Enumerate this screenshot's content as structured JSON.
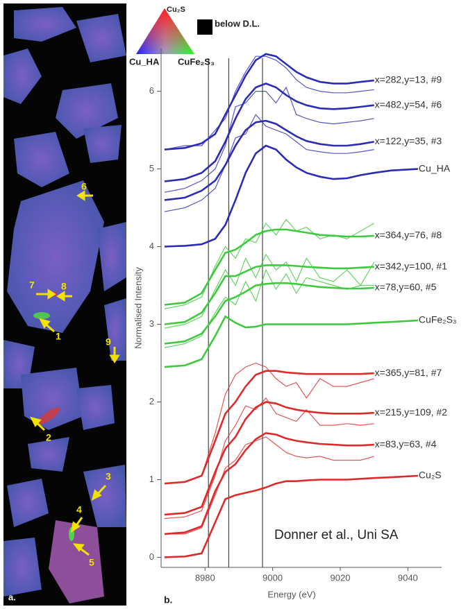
{
  "chart_data": {
    "type": "line",
    "x_label": "Energy (eV)",
    "y_label": "Normalised Intensity",
    "panel_label": "b.",
    "annotation": "Donner et al., Uni SA",
    "color_key": {
      "top": "Cu₂S",
      "left": "Cu_HA",
      "right": "CuFe₂S₃",
      "below": "below D.L."
    },
    "xlim": [
      8967,
      9050
    ],
    "xticks": [
      8980,
      9000,
      9020,
      9040
    ],
    "ylim": [
      -0.13,
      6.55
    ],
    "yticks": [
      0,
      1,
      2,
      3,
      4,
      5,
      6
    ],
    "vlines": [
      8981,
      8987,
      8997
    ],
    "x": [
      8968,
      8974,
      8979,
      8983,
      8986,
      8989,
      8992,
      8995,
      8998,
      9001,
      9004,
      9007,
      9010,
      9014,
      9018,
      9022,
      9026,
      9030,
      9035,
      9043
    ],
    "series": [
      {
        "name": "x=282,y=13, #9",
        "color": "#2b2bb5",
        "values": [
          5.25,
          5.27,
          5.33,
          5.45,
          5.7,
          5.95,
          6.2,
          6.4,
          6.48,
          6.45,
          6.35,
          6.25,
          6.18,
          6.12,
          6.1,
          6.1,
          6.12,
          6.14,
          null,
          null
        ],
        "measured": [
          5.25,
          5.3,
          5.3,
          5.5,
          5.65,
          6.0,
          6.25,
          6.45,
          6.45,
          6.4,
          6.3,
          6.15,
          6.05,
          6.0,
          5.98,
          5.98,
          6.0,
          6.02,
          null,
          null
        ]
      },
      {
        "name": "x=482,y=54, #6",
        "color": "#2b2bb5",
        "values": [
          4.84,
          4.87,
          4.95,
          5.1,
          5.35,
          5.65,
          5.9,
          6.05,
          6.1,
          6.05,
          5.95,
          5.87,
          5.82,
          5.78,
          5.77,
          5.78,
          5.8,
          5.82,
          null,
          null
        ],
        "measured": [
          4.7,
          4.75,
          4.85,
          5.0,
          5.3,
          5.8,
          5.85,
          6.0,
          6.0,
          5.85,
          6.05,
          5.7,
          5.65,
          5.6,
          5.58,
          5.6,
          5.62,
          5.65,
          null,
          null
        ]
      },
      {
        "name": "x=122,y=35, #3",
        "color": "#2b2bb5",
        "values": [
          4.6,
          4.63,
          4.72,
          4.85,
          5.05,
          5.3,
          5.5,
          5.6,
          5.62,
          5.58,
          5.5,
          5.42,
          5.36,
          5.32,
          5.3,
          5.3,
          5.32,
          5.35,
          null,
          null
        ],
        "measured": [
          4.45,
          4.5,
          4.6,
          4.75,
          5.05,
          5.4,
          5.45,
          5.7,
          5.55,
          5.5,
          5.45,
          5.35,
          5.25,
          5.22,
          5.2,
          5.2,
          5.22,
          5.25,
          null,
          null
        ]
      },
      {
        "name": "Cu_HA",
        "color": "#2b2bb5",
        "values": [
          4.0,
          4.01,
          4.03,
          4.1,
          4.28,
          4.6,
          4.95,
          5.2,
          5.3,
          5.25,
          5.12,
          5.02,
          4.95,
          4.9,
          4.87,
          4.88,
          4.92,
          4.95,
          4.98,
          5.0
        ]
      },
      {
        "name": "x=364,y=76, #8",
        "color": "#3fc93f",
        "values": [
          3.25,
          3.28,
          3.4,
          3.7,
          3.92,
          3.96,
          4.05,
          4.15,
          4.2,
          4.22,
          4.22,
          4.2,
          4.18,
          4.15,
          4.14,
          4.13,
          4.13,
          4.14,
          null,
          null
        ],
        "measured": [
          3.2,
          3.25,
          3.35,
          3.75,
          4.0,
          3.85,
          4.1,
          4.05,
          4.3,
          4.15,
          4.35,
          4.2,
          4.25,
          4.1,
          4.15,
          4.1,
          4.2,
          4.3,
          null,
          null
        ]
      },
      {
        "name": "x=342,y=100, #1",
        "color": "#3fc93f",
        "values": [
          3.0,
          3.03,
          3.15,
          3.4,
          3.62,
          3.62,
          3.68,
          3.74,
          3.76,
          3.76,
          3.76,
          3.75,
          3.74,
          3.73,
          3.72,
          3.72,
          3.73,
          3.74,
          null,
          null
        ],
        "measured": [
          2.95,
          3.0,
          3.1,
          3.45,
          3.7,
          3.5,
          3.85,
          3.6,
          3.9,
          3.7,
          3.8,
          3.55,
          3.85,
          3.6,
          3.55,
          3.7,
          3.5,
          3.8,
          null,
          null
        ]
      },
      {
        "name": "x=78,y=60, #5",
        "color": "#3fc93f",
        "values": [
          2.75,
          2.78,
          2.88,
          3.1,
          3.3,
          3.35,
          3.42,
          3.5,
          3.52,
          3.53,
          3.53,
          3.52,
          3.5,
          3.48,
          3.47,
          3.46,
          3.46,
          3.47,
          null,
          null
        ],
        "measured": [
          2.7,
          2.75,
          2.85,
          3.15,
          3.35,
          3.25,
          3.55,
          3.3,
          3.7,
          3.45,
          3.65,
          3.4,
          3.6,
          3.55,
          3.5,
          3.45,
          3.5,
          3.5,
          null,
          null
        ]
      },
      {
        "name": "CuFe₂S₃",
        "color": "#3fc93f",
        "values": [
          2.45,
          2.47,
          2.55,
          2.85,
          3.1,
          3.02,
          2.96,
          2.97,
          3.0,
          3.0,
          3.0,
          3.0,
          3.0,
          3.0,
          3.0,
          3.0,
          3.01,
          3.02,
          3.03,
          3.05
        ]
      },
      {
        "name": "x=365,y=81, #7",
        "color": "#dd2a2a",
        "values": [
          0.95,
          0.97,
          1.05,
          1.5,
          1.85,
          2.0,
          2.2,
          2.35,
          2.4,
          2.4,
          2.38,
          2.37,
          2.36,
          2.36,
          2.36,
          2.36,
          2.36,
          2.37,
          null,
          null
        ],
        "measured": [
          0.95,
          0.97,
          1.05,
          1.6,
          2.1,
          2.35,
          2.45,
          2.5,
          2.45,
          2.3,
          2.2,
          2.25,
          2.05,
          2.3,
          2.2,
          2.2,
          2.25,
          2.3,
          null,
          null
        ]
      },
      {
        "name": "x=215,y=109, #2",
        "color": "#dd2a2a",
        "values": [
          0.55,
          0.57,
          0.65,
          1.1,
          1.4,
          1.55,
          1.78,
          1.93,
          2.0,
          1.98,
          1.93,
          1.9,
          1.88,
          1.86,
          1.85,
          1.85,
          1.85,
          1.86,
          null,
          null
        ],
        "measured": [
          0.5,
          0.52,
          0.6,
          1.05,
          1.5,
          1.7,
          1.95,
          1.9,
          2.05,
          1.85,
          1.8,
          1.75,
          1.9,
          1.7,
          1.7,
          1.72,
          1.7,
          1.72,
          null,
          null
        ]
      },
      {
        "name": "x=83,y=63, #4",
        "color": "#dd2a2a",
        "values": [
          0.3,
          0.32,
          0.4,
          0.85,
          1.1,
          1.2,
          1.38,
          1.52,
          1.6,
          1.58,
          1.53,
          1.5,
          1.48,
          1.46,
          1.45,
          1.44,
          1.44,
          1.45,
          null,
          null
        ],
        "measured": [
          0.3,
          0.3,
          0.38,
          0.8,
          1.15,
          1.25,
          1.45,
          1.5,
          1.55,
          1.45,
          1.35,
          1.3,
          1.28,
          1.3,
          1.25,
          1.25,
          1.25,
          1.3,
          null,
          null
        ]
      },
      {
        "name": "Cu₂S",
        "color": "#dd2a2a",
        "values": [
          0.0,
          0.01,
          0.05,
          0.45,
          0.75,
          0.8,
          0.83,
          0.86,
          0.9,
          0.95,
          0.98,
          0.98,
          0.99,
          1.0,
          1.0,
          1.0,
          1.01,
          1.02,
          1.03,
          1.05
        ]
      }
    ]
  },
  "image_panel": {
    "label": "a.",
    "markers": [
      "7",
      "8",
      "1",
      "6",
      "9",
      "2",
      "3",
      "4",
      "5"
    ]
  }
}
